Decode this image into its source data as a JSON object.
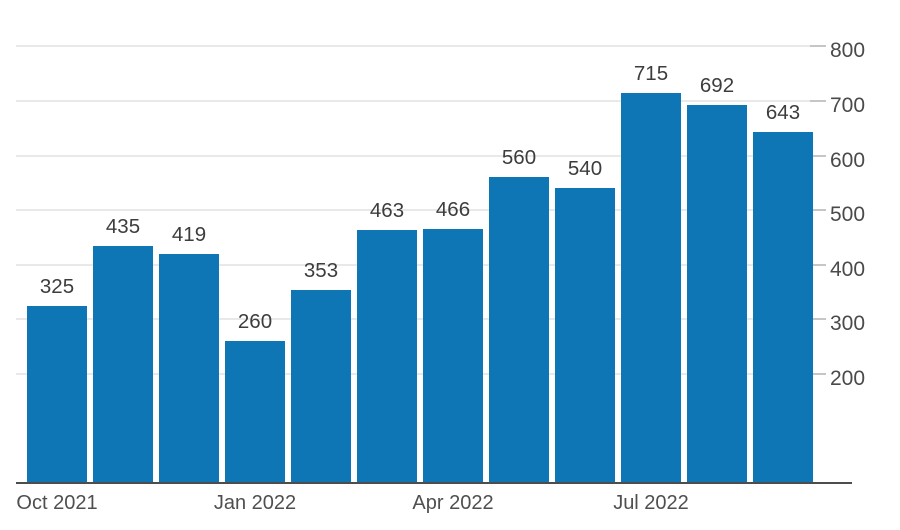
{
  "chart_data": {
    "type": "bar",
    "title": "",
    "xlabel": "",
    "ylabel": "",
    "values": [
      325,
      435,
      419,
      260,
      353,
      463,
      466,
      560,
      540,
      715,
      692,
      643
    ],
    "bar_value_labels": [
      "325",
      "435",
      "419",
      "260",
      "353",
      "463",
      "466",
      "560",
      "540",
      "715",
      "692",
      "643"
    ],
    "x_tick_labels": [
      {
        "index": 0,
        "label": "Oct 2021"
      },
      {
        "index": 3,
        "label": "Jan 2022"
      },
      {
        "index": 6,
        "label": "Apr 2022"
      },
      {
        "index": 9,
        "label": "Jul 2022"
      }
    ],
    "y_ticks": [
      200,
      300,
      400,
      500,
      600,
      700,
      800
    ],
    "ylim": [
      0,
      800
    ],
    "y_axis_side": "right",
    "grid": "horizontal",
    "legend_position": "none",
    "colors": {
      "bar": "#0e76b4",
      "gridline": "#e9e9e9",
      "y_tick_mark": "#c6c6c6",
      "axis_line": "#4d4d4d",
      "value_label_text": "#3d3d3d",
      "y_label_text": "#4a4a4a",
      "x_label_text": "#4f4f4f"
    }
  }
}
